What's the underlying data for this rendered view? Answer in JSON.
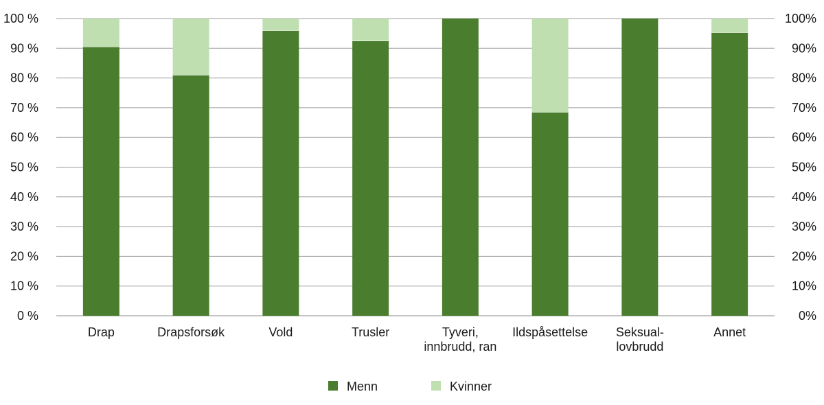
{
  "chart_data": {
    "type": "bar",
    "stacked": true,
    "categories": [
      [
        "Drap"
      ],
      [
        "Drapsforsøk"
      ],
      [
        "Vold"
      ],
      [
        "Trusler"
      ],
      [
        "Tyveri,",
        "innbrudd, ran"
      ],
      [
        "Ildspåsettelse"
      ],
      [
        "Seksual-",
        "lovbrudd"
      ],
      [
        "Annet"
      ]
    ],
    "series": [
      {
        "name": "Menn",
        "color": "#4b7d2e",
        "values": [
          90.5,
          81,
          96,
          92.5,
          100,
          68.5,
          100,
          95.3
        ]
      },
      {
        "name": "Kvinner",
        "color": "#bfdfb0",
        "values": [
          9.5,
          19,
          4,
          7.5,
          0,
          31.5,
          0,
          4.7
        ]
      }
    ],
    "ylim": [
      0,
      100
    ],
    "y_ticks_left": [
      "0 %",
      "10 %",
      "20 %",
      "30 %",
      "40 %",
      "50 %",
      "60 %",
      "70 %",
      "80 %",
      "90 %",
      "100 %"
    ],
    "y_ticks_right": [
      "0%",
      "10%",
      "20%",
      "30%",
      "40%",
      "50%",
      "60%",
      "70%",
      "80%",
      "90%",
      "100%"
    ],
    "grid": true,
    "legend_position": "bottom"
  }
}
